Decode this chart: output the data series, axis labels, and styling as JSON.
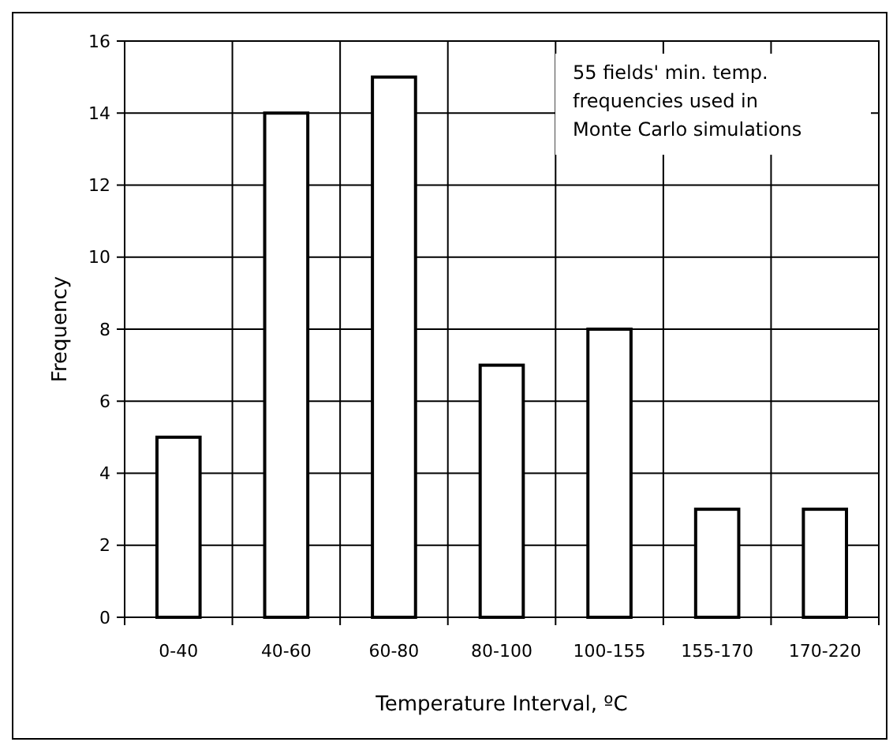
{
  "chart_data": {
    "type": "bar",
    "xlabel": "Temperature Interval, ºC",
    "ylabel": "Frequency",
    "categories": [
      "0-40",
      "40-60",
      "60-80",
      "80-100",
      "100-155",
      "155-170",
      "170-220"
    ],
    "values": [
      5,
      14,
      15,
      7,
      8,
      3,
      3
    ],
    "color": "#ffffff",
    "ylim": [
      0,
      16
    ],
    "yticks": [
      0,
      2,
      4,
      6,
      8,
      10,
      12,
      14,
      16
    ],
    "grid": true,
    "annotations": [
      "55 fields'  min. temp.\nfrequencies used in\nMonte Carlo simulations"
    ]
  }
}
